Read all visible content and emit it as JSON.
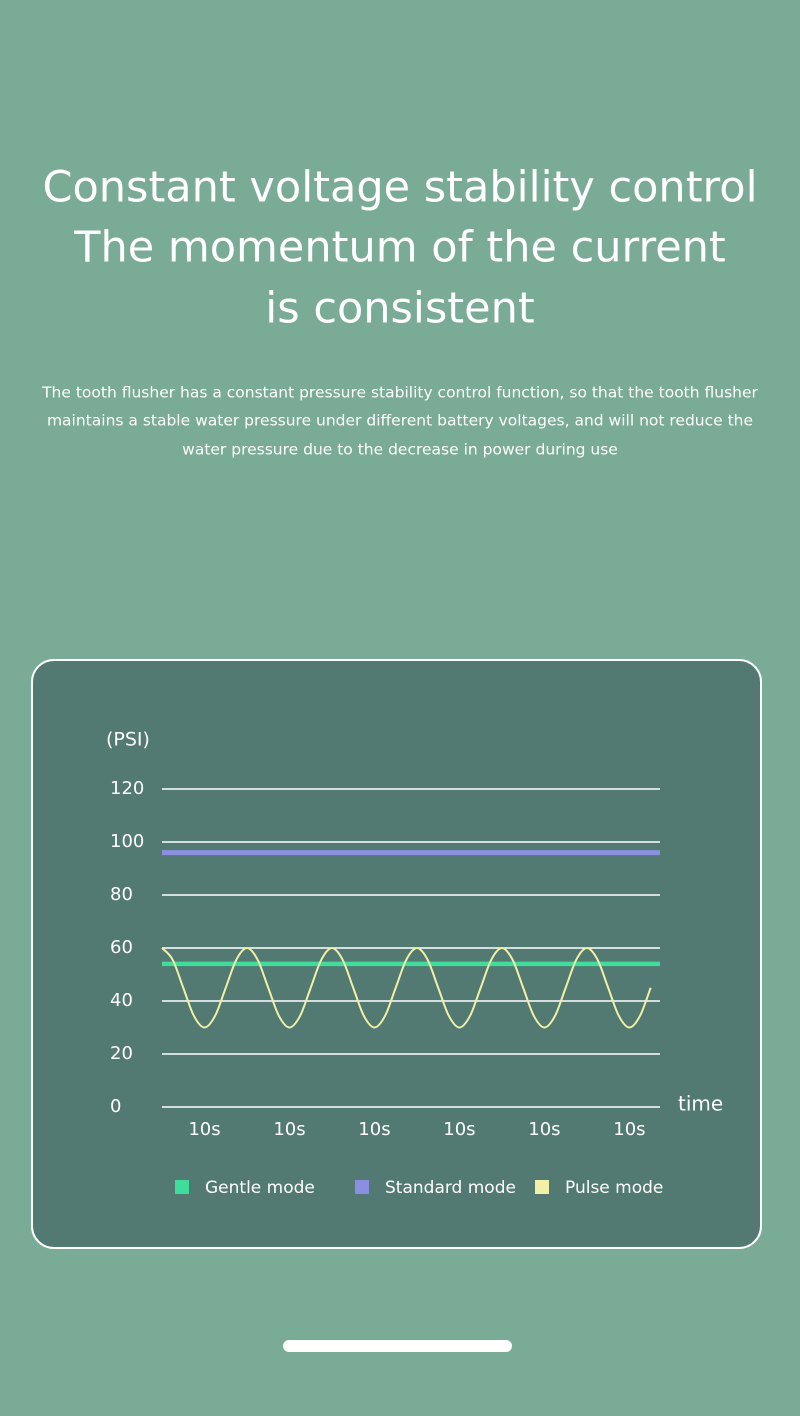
{
  "header": {
    "title_lines": [
      "Constant voltage stability control",
      "The momentum of the current",
      "is consistent"
    ],
    "description_lines": [
      "The tooth flusher has a constant pressure stability control function, so that the tooth flusher",
      "maintains a stable water pressure under different battery voltages, and will not reduce the",
      "water pressure due to the decrease in power during use"
    ]
  },
  "chart_data": {
    "type": "line",
    "y_label": "(PSI)",
    "x_label": "time",
    "xlim": [
      0,
      58.6
    ],
    "xticks": [
      {
        "value": 5,
        "label": "10s"
      },
      {
        "value": 15,
        "label": "10s"
      },
      {
        "value": 25,
        "label": "10s"
      },
      {
        "value": 35,
        "label": "10s"
      },
      {
        "value": 45,
        "label": "10s"
      },
      {
        "value": 55,
        "label": "10s"
      }
    ],
    "ylim": [
      0,
      120
    ],
    "yticks": [
      0,
      20,
      40,
      60,
      80,
      100,
      120
    ],
    "grid": true,
    "legend": "bottom",
    "series": [
      {
        "name": "Gentle mode",
        "color": "#3fdc9c",
        "x": [
          0,
          58.6
        ],
        "values": [
          54,
          54
        ]
      },
      {
        "name": "Standard mode",
        "color": "#8b8fe2",
        "x": [
          0,
          58.6
        ],
        "values": [
          96,
          96
        ]
      },
      {
        "name": "Pulse mode",
        "color": "#f2f0a6",
        "x": [
          0,
          1.25,
          2.5,
          3.75,
          5,
          6.25,
          7.5,
          8.75,
          10,
          11.25,
          12.5,
          13.75,
          15,
          16.25,
          17.5,
          18.75,
          20,
          21.25,
          22.5,
          23.75,
          25,
          26.25,
          27.5,
          28.75,
          30,
          31.25,
          32.5,
          33.75,
          35,
          36.25,
          37.5,
          38.75,
          40,
          41.25,
          42.5,
          43.75,
          45,
          46.25,
          47.5,
          48.75,
          50,
          51.25,
          52.5,
          53.75,
          55,
          56.25,
          57.5
        ],
        "values": [
          60,
          55.6,
          45,
          34.4,
          30,
          34.4,
          45,
          55.6,
          60,
          55.6,
          45,
          34.4,
          30,
          34.4,
          45,
          55.6,
          60,
          55.6,
          45,
          34.4,
          30,
          34.4,
          45,
          55.6,
          60,
          55.6,
          45,
          34.4,
          30,
          34.4,
          45,
          55.6,
          60,
          55.6,
          45,
          34.4,
          30,
          34.4,
          45,
          55.6,
          60,
          55.6,
          45,
          34.4,
          30,
          34.4,
          45
        ]
      }
    ]
  }
}
